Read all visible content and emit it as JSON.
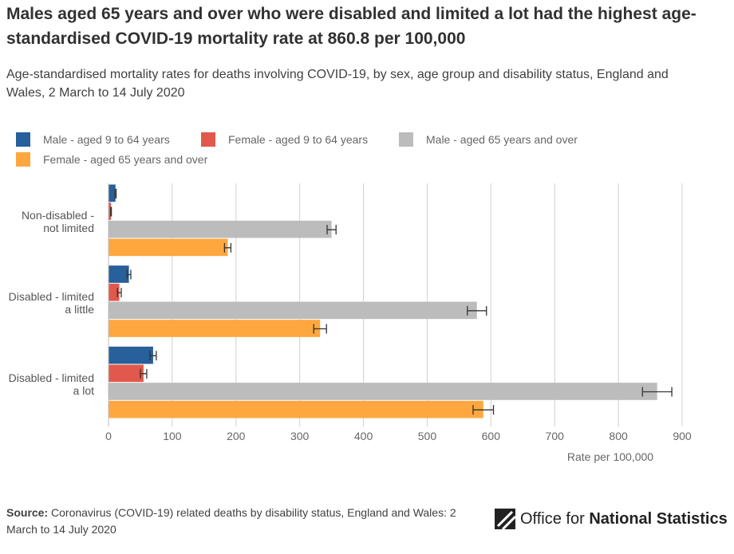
{
  "chart_data": {
    "type": "bar",
    "orientation": "horizontal",
    "title": "Males aged 65 years and over who were disabled and limited a lot had the highest age-standardised COVID-19 mortality rate at 860.8 per 100,000",
    "subtitle": "Age-standardised mortality rates for deaths involving COVID-19, by sex, age group and disability status, England and Wales, 2 March to 14 July 2020",
    "categories": [
      "Non-disabled - not limited",
      "Disabled - limited a little",
      "Disabled - limited a lot"
    ],
    "series": [
      {
        "name": "Male - aged 9 to 64 years",
        "color": "#27609b",
        "values": [
          11,
          32,
          70
        ],
        "errors": [
          1,
          3,
          5
        ]
      },
      {
        "name": "Female - aged 9 to 64 years",
        "color": "#e0594c",
        "values": [
          4,
          17,
          55
        ],
        "errors": [
          0.5,
          3,
          5
        ]
      },
      {
        "name": "Male - aged 65 years and over",
        "color": "#bcbcbc",
        "values": [
          350,
          578,
          860.8
        ],
        "errors": [
          7,
          15,
          23
        ]
      },
      {
        "name": "Female - aged 65 years and over",
        "color": "#fea73f",
        "values": [
          187,
          332,
          588
        ],
        "errors": [
          5,
          10,
          16
        ]
      }
    ],
    "xlim": [
      0,
      900
    ],
    "xticks": [
      0,
      100,
      200,
      300,
      400,
      500,
      600,
      700,
      800,
      900
    ],
    "x_label": "Rate per 100,000",
    "grid": true
  },
  "footer": {
    "source_label": "Source:",
    "source": "Coronavirus (COVID-19) related deaths by disability status, England and Wales: 2 March to 14 July 2020",
    "logo_light": "Office for",
    "logo_bold": "National Statistics"
  }
}
